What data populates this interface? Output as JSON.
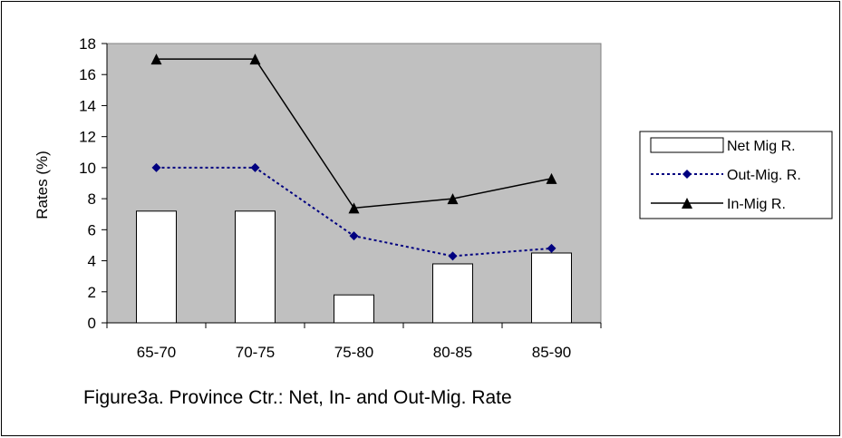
{
  "caption": "Figure3a.  Province Ctr.: Net, In- and Out-Mig. Rate",
  "chart_data": {
    "type": "bar",
    "categories": [
      "65-70",
      "70-75",
      "75-80",
      "80-85",
      "85-90"
    ],
    "ylabel": "Rates (%)",
    "xlabel": "",
    "ylim": [
      0,
      18
    ],
    "yticks": [
      0,
      2,
      4,
      6,
      8,
      10,
      12,
      14,
      16,
      18
    ],
    "plot_background": "#c0c0c0",
    "grid": false,
    "legend_position": "right",
    "series": [
      {
        "name": "Net Mig R.",
        "type": "bar",
        "values": [
          7.2,
          7.2,
          1.8,
          3.8,
          4.5
        ],
        "color": "#ffffff",
        "stroke": "#000000"
      },
      {
        "name": "Out-Mig. R.",
        "type": "line",
        "style": "dotted",
        "marker": "diamond",
        "values": [
          10.0,
          10.0,
          5.6,
          4.3,
          4.8
        ],
        "color": "#000080"
      },
      {
        "name": "In-Mig R.",
        "type": "line",
        "style": "solid",
        "marker": "triangle",
        "values": [
          17.0,
          17.0,
          7.4,
          8.0,
          9.3
        ],
        "color": "#000000"
      }
    ]
  }
}
